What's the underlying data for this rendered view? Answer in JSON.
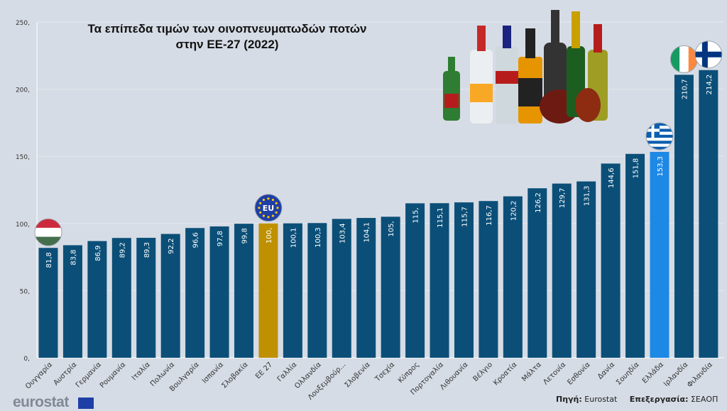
{
  "chart_data": {
    "type": "bar",
    "title": "Τα επίπεδα τιμών των οινοπνευματωδών ποτών",
    "subtitle": "στην ΕΕ-27  (2022)",
    "xlabel": "",
    "ylabel": "",
    "ylim": [
      0,
      250
    ],
    "yticks": [
      0,
      50,
      100,
      150,
      200,
      250
    ],
    "ytick_labels": [
      "0,",
      "50,",
      "100,",
      "150,",
      "200,",
      "250,"
    ],
    "grid": true,
    "categories": [
      "Ουγγαρία",
      "Αυστρία",
      "Γερμανία",
      "Ρουμανία",
      "Ιταλία",
      "Πολωνία",
      "Βουλγαρία",
      "Ισπανία",
      "Σλοβακία",
      "ΕΕ 27",
      "Γαλλία",
      "Ολλανδία",
      "Λουξεμβούρ...",
      "Σλοβενία",
      "Τσεχία",
      "Κύπρος",
      "Πορτογαλία",
      "Λιθουανία",
      "Βέλγιο",
      "Κροατία",
      "Μάλτα",
      "Λετονία",
      "Εσθονία",
      "Δανία",
      "Σουηδία",
      "Ελλάδα",
      "Ιρλανδία",
      "Φιλανδία"
    ],
    "values": [
      81.8,
      83.8,
      86.9,
      89.2,
      89.3,
      92.2,
      96.6,
      97.8,
      99.8,
      100,
      100.1,
      100.3,
      103.4,
      104.1,
      105,
      115,
      115.1,
      115.7,
      116.7,
      120.2,
      126.2,
      129.7,
      131.3,
      144.6,
      151.8,
      153.3,
      210.7,
      214.2
    ],
    "value_labels": [
      "81,8",
      "83,8",
      "86,9",
      "89,2",
      "89,3",
      "92,2",
      "96,6",
      "97,8",
      "99,8",
      "100,",
      "100,1",
      "100,3",
      "103,4",
      "104,1",
      "105,",
      "115,",
      "115,1",
      "115,7",
      "116,7",
      "120,2",
      "126,2",
      "129,7",
      "131,3",
      "144,6",
      "151,8",
      "153,3",
      "210,7",
      "214,2"
    ],
    "highlight": {
      "ΕΕ 27": "#bf9000",
      "Ελλάδα": "#1e88e5"
    },
    "flags": {
      "Ουγγαρία": "hungary-flag-icon",
      "ΕΕ 27": "eu-flag-icon",
      "Ελλάδα": "greece-flag-icon",
      "Ιρλανδία": "ireland-flag-icon",
      "Φιλανδία": "finland-flag-icon"
    }
  },
  "colors": {
    "bar": "#0b4f78",
    "eu": "#bf9000",
    "greece": "#1e88e5",
    "background": "#d6dce5"
  },
  "footer": {
    "source_label": "Πηγή:",
    "source": "Eurostat",
    "processing_label": "Επεξεργασία:",
    "processing": "ΣΕΑΟΠ"
  },
  "logo": {
    "text": "eurostat",
    "eu_label": "EU"
  },
  "icons": {
    "bottles": "liquor-bottles-illustration"
  }
}
